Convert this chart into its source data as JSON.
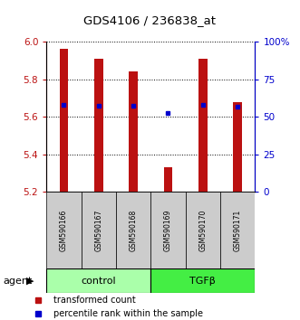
{
  "title": "GDS4106 / 236838_at",
  "samples": [
    "GSM590166",
    "GSM590167",
    "GSM590168",
    "GSM590169",
    "GSM590170",
    "GSM590171"
  ],
  "bar_values": [
    5.96,
    5.91,
    5.84,
    5.33,
    5.91,
    5.68
  ],
  "bar_base": 5.2,
  "percentile_values": [
    5.665,
    5.66,
    5.66,
    5.62,
    5.665,
    5.655
  ],
  "ylim": [
    5.2,
    6.0
  ],
  "yticks_left": [
    5.2,
    5.4,
    5.6,
    5.8,
    6.0
  ],
  "yticks_right_pct": [
    0,
    25,
    50,
    75,
    100
  ],
  "ytick_right_labels": [
    "0",
    "25",
    "50",
    "75",
    "100%"
  ],
  "group_labels": [
    "control",
    "TGFβ"
  ],
  "group_colors": [
    "#aaffaa",
    "#44ee44"
  ],
  "bar_color": "#bb1111",
  "blue_color": "#0000cc",
  "sample_box_color": "#cccccc",
  "agent_label": "agent",
  "legend_items": [
    "transformed count",
    "percentile rank within the sample"
  ],
  "bar_width": 0.25
}
